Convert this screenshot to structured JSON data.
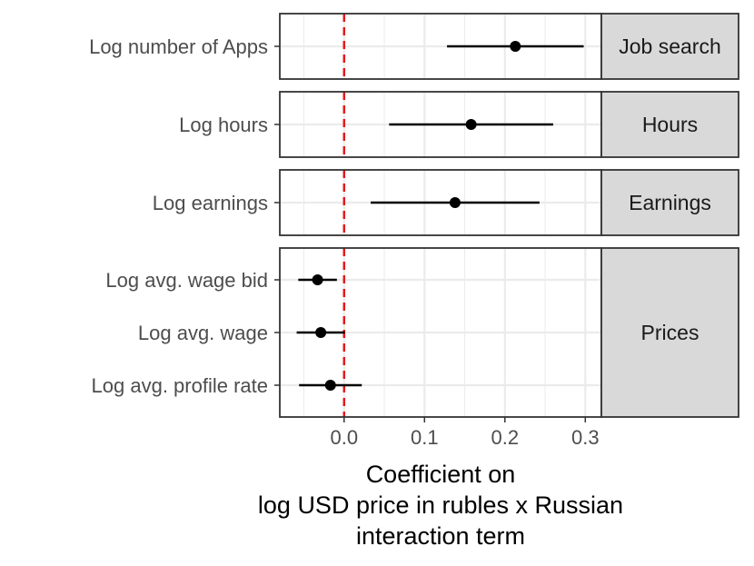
{
  "chart_data": {
    "type": "scatter",
    "subtype": "coefficient-plot-with-error-bars",
    "xlabel": [
      "Coefficient on",
      "log USD price in rubles x Russian",
      "interaction term"
    ],
    "xlim": [
      -0.08,
      0.32
    ],
    "x_ticks": [
      0.0,
      0.1,
      0.2,
      0.3
    ],
    "x_tick_labels": [
      "0.0",
      "0.1",
      "0.2",
      "0.3"
    ],
    "reference_line": {
      "x": 0,
      "style": "dashed",
      "color": "#e41a1c"
    },
    "grid": true,
    "colors": {
      "point": "#000000",
      "panel_border": "#333333",
      "strip_bg": "#d9d9d9",
      "grid": "#ebebeb"
    },
    "panels": [
      {
        "facet": "Job search",
        "rows": [
          {
            "label": "Log number of Apps",
            "estimate": 0.213,
            "lower": 0.128,
            "upper": 0.298
          }
        ]
      },
      {
        "facet": "Hours",
        "rows": [
          {
            "label": "Log hours",
            "estimate": 0.158,
            "lower": 0.056,
            "upper": 0.26
          }
        ]
      },
      {
        "facet": "Earnings",
        "rows": [
          {
            "label": "Log earnings",
            "estimate": 0.138,
            "lower": 0.033,
            "upper": 0.243
          }
        ]
      },
      {
        "facet": "Prices",
        "rows": [
          {
            "label": "Log avg. wage bid",
            "estimate": -0.033,
            "lower": -0.057,
            "upper": -0.009
          },
          {
            "label": "Log avg. wage",
            "estimate": -0.029,
            "lower": -0.059,
            "upper": 0.001
          },
          {
            "label": "Log avg. profile rate",
            "estimate": -0.017,
            "lower": -0.056,
            "upper": 0.022
          }
        ]
      }
    ]
  }
}
